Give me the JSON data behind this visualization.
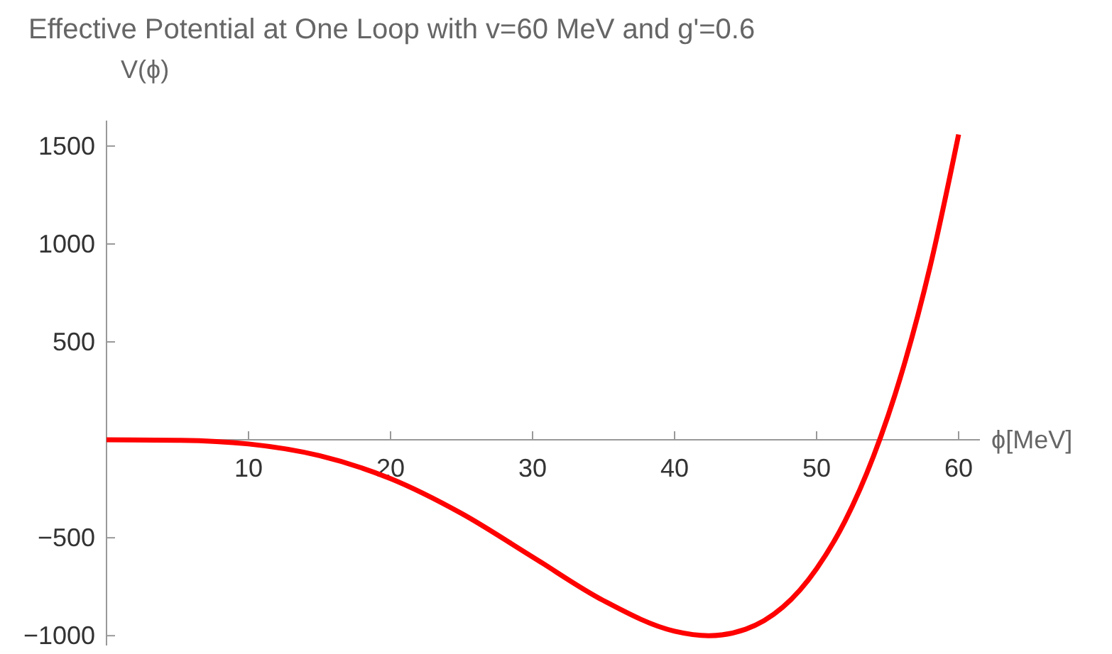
{
  "chart_data": {
    "type": "line",
    "title": "Effective Potential at One Loop with v=60 MeV and g'=0.6",
    "xlabel": "ϕ[MeV]",
    "ylabel": "V(ϕ)",
    "x": [
      0,
      5,
      10,
      15,
      20,
      25,
      30,
      35,
      40,
      42.4,
      45,
      50,
      52,
      54,
      56,
      58,
      60
    ],
    "series": [
      {
        "color": "#ff0000",
        "values": [
          0,
          -2,
          -21,
          -81,
          -198,
          -376,
          -598,
          -821,
          -977,
          -1000,
          -967,
          -658,
          -415,
          -85,
          343,
          887,
          1559
        ]
      }
    ],
    "xlim": [
      0,
      61.5
    ],
    "ylim": [
      -1050,
      1630
    ],
    "xticks": [
      10,
      20,
      30,
      40,
      50,
      60
    ],
    "yticks": [
      -1000,
      -500,
      500,
      1000,
      1500
    ],
    "grid": false,
    "marker": "none",
    "line_style": "solid"
  }
}
